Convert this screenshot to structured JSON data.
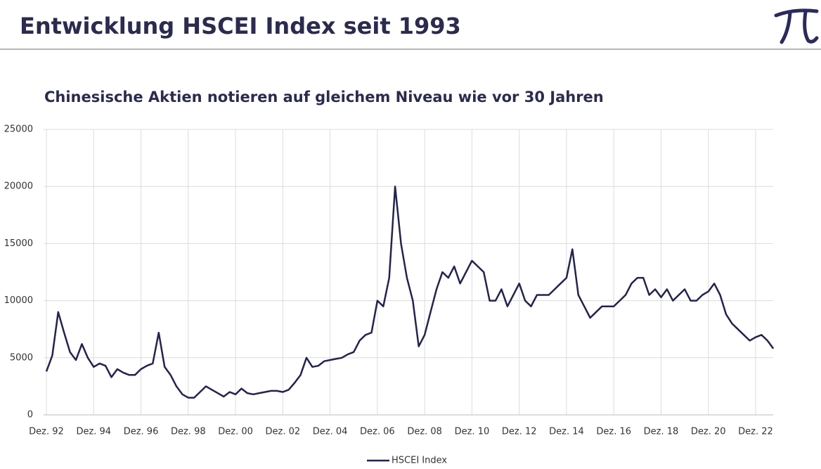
{
  "chart_data": {
    "type": "line",
    "title": "Entwicklung HSCEI Index seit 1993",
    "subtitle": "Chinesische Aktien notieren auf gleichem Niveau wie vor 30 Jahren",
    "categories": [
      "Dez. 92",
      null,
      null,
      null,
      null,
      null,
      null,
      null,
      "Dez. 94",
      null,
      null,
      null,
      null,
      null,
      null,
      null,
      "Dez. 96",
      null,
      null,
      null,
      null,
      null,
      null,
      null,
      "Dez. 98",
      null,
      null,
      null,
      null,
      null,
      null,
      null,
      "Dez. 00",
      null,
      null,
      null,
      null,
      null,
      null,
      null,
      "Dez. 02",
      null,
      null,
      null,
      null,
      null,
      null,
      null,
      "Dez. 04",
      null,
      null,
      null,
      null,
      null,
      null,
      null,
      "Dez. 06",
      null,
      null,
      null,
      null,
      null,
      null,
      null,
      "Dez. 08",
      null,
      null,
      null,
      null,
      null,
      null,
      null,
      "Dez. 10",
      null,
      null,
      null,
      null,
      null,
      null,
      null,
      "Dez. 12",
      null,
      null,
      null,
      null,
      null,
      null,
      null,
      "Dez. 14",
      null,
      null,
      null,
      null,
      null,
      null,
      null,
      "Dez. 16",
      null,
      null,
      null,
      null,
      null,
      null,
      null,
      "Dez. 18",
      null,
      null,
      null,
      null,
      null,
      null,
      null,
      "Dez. 20",
      null,
      null,
      null,
      null,
      null,
      null,
      null,
      "Dez. 22",
      null,
      null,
      null
    ],
    "series": [
      {
        "name": "HSCEI Index",
        "color": "#23234f",
        "values": [
          3800,
          5200,
          9000,
          7200,
          5500,
          4800,
          6200,
          5000,
          4200,
          4500,
          4300,
          3300,
          4000,
          3700,
          3500,
          3500,
          4000,
          4300,
          4500,
          7200,
          4200,
          3500,
          2500,
          1800,
          1500,
          1500,
          2000,
          2500,
          2200,
          1900,
          1600,
          2000,
          1800,
          2300,
          1900,
          1800,
          1900,
          2000,
          2100,
          2100,
          2000,
          2200,
          2800,
          3500,
          5000,
          4200,
          4300,
          4700,
          4800,
          4900,
          5000,
          5300,
          5500,
          6500,
          7000,
          7200,
          10000,
          9500,
          12000,
          20000,
          15000,
          12000,
          10000,
          6000,
          7000,
          9000,
          11000,
          12500,
          12000,
          13000,
          11500,
          12500,
          13500,
          13000,
          12500,
          10000,
          10000,
          11000,
          9500,
          10500,
          11500,
          10000,
          9500,
          10500,
          10500,
          10500,
          11000,
          11500,
          12000,
          14500,
          10500,
          9500,
          8500,
          9000,
          9500,
          9500,
          9500,
          10000,
          10500,
          11500,
          12000,
          12000,
          10500,
          11000,
          10300,
          11000,
          10000,
          10500,
          11000,
          10000,
          10000,
          10500,
          10800,
          11500,
          10500,
          8800,
          8000,
          7500,
          7000,
          6500,
          6800,
          7000,
          6500,
          5800
        ]
      }
    ],
    "ylim": [
      0,
      25000
    ],
    "yticks": [
      0,
      5000,
      10000,
      15000,
      20000,
      25000
    ],
    "grid": true,
    "legend": "bottom"
  }
}
